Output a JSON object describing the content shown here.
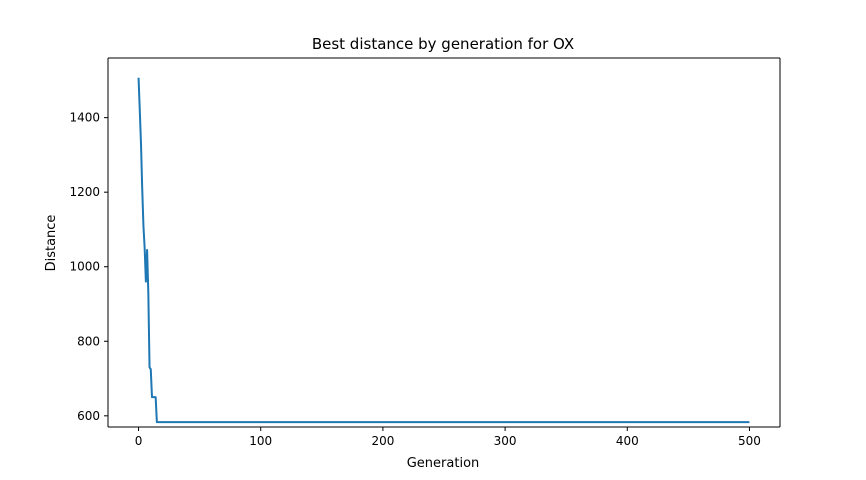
{
  "chart_data": {
    "type": "line",
    "title": "Best distance by generation for OX",
    "xlabel": "Generation",
    "ylabel": "Distance",
    "xlim": [
      -25,
      525
    ],
    "ylim": [
      570,
      1560
    ],
    "xticks": [
      0,
      100,
      200,
      300,
      400,
      500
    ],
    "yticks": [
      600,
      800,
      1000,
      1200,
      1400
    ],
    "grid": false,
    "line_color": "#1f77b4",
    "series": [
      {
        "x": [
          0,
          1,
          2,
          3,
          4,
          5,
          6,
          7,
          8,
          9,
          10,
          11,
          12,
          13,
          14,
          15,
          16,
          100,
          200,
          300,
          400,
          500
        ],
        "y": [
          1507,
          1420,
          1330,
          1210,
          1110,
          1050,
          960,
          1045,
          930,
          730,
          725,
          650,
          650,
          650,
          650,
          583,
          583,
          583,
          583,
          583,
          583,
          583
        ]
      }
    ]
  }
}
